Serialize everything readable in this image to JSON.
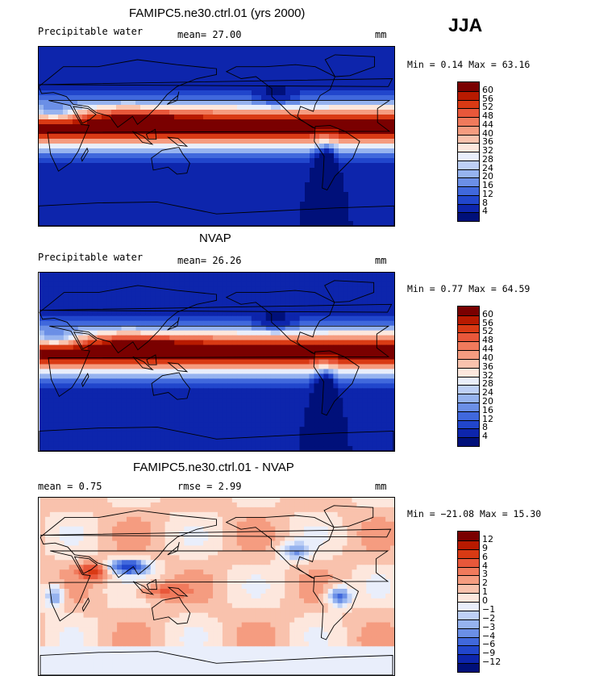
{
  "season": "JJA",
  "panels": [
    {
      "title": "FAMIPC5.ne30.ctrl.01 (yrs 2000)",
      "left_label": "Precipitable water",
      "middle_label": "mean=  27.00",
      "units": "mm",
      "minmax": "Min =   0.14 Max =  63.16",
      "levels": [
        "60",
        "56",
        "52",
        "48",
        "44",
        "40",
        "36",
        "32",
        "28",
        "24",
        "20",
        "16",
        "12",
        "8",
        "4"
      ],
      "field": "model"
    },
    {
      "title": "NVAP",
      "left_label": "Precipitable water",
      "middle_label": "mean=  26.26",
      "units": "mm",
      "minmax": "Min =   0.77 Max =  64.59",
      "levels": [
        "60",
        "56",
        "52",
        "48",
        "44",
        "40",
        "36",
        "32",
        "28",
        "24",
        "20",
        "16",
        "12",
        "8",
        "4"
      ],
      "field": "obs"
    },
    {
      "title": "FAMIPC5.ne30.ctrl.01 - NVAP",
      "left_label": "mean =   0.75",
      "middle_label": "rmse =   2.99",
      "units": "mm",
      "minmax": "Min = −21.08 Max =  15.30",
      "levels": [
        "12",
        "9",
        "6",
        "4",
        "3",
        "2",
        "1",
        "0",
        "−1",
        "−2",
        "−3",
        "−4",
        "−6",
        "−9",
        "−12"
      ],
      "field": "diff"
    }
  ],
  "colors": {
    "palette16": [
      "#7a0000",
      "#b81a00",
      "#d93a14",
      "#e8573a",
      "#f07a5c",
      "#f59c80",
      "#f9c2ad",
      "#fde7dd",
      "#e9eefb",
      "#bed0f6",
      "#96b3ef",
      "#6b8fe6",
      "#4068dc",
      "#2146cc",
      "#0d25ac",
      "#00107a"
    ]
  }
}
